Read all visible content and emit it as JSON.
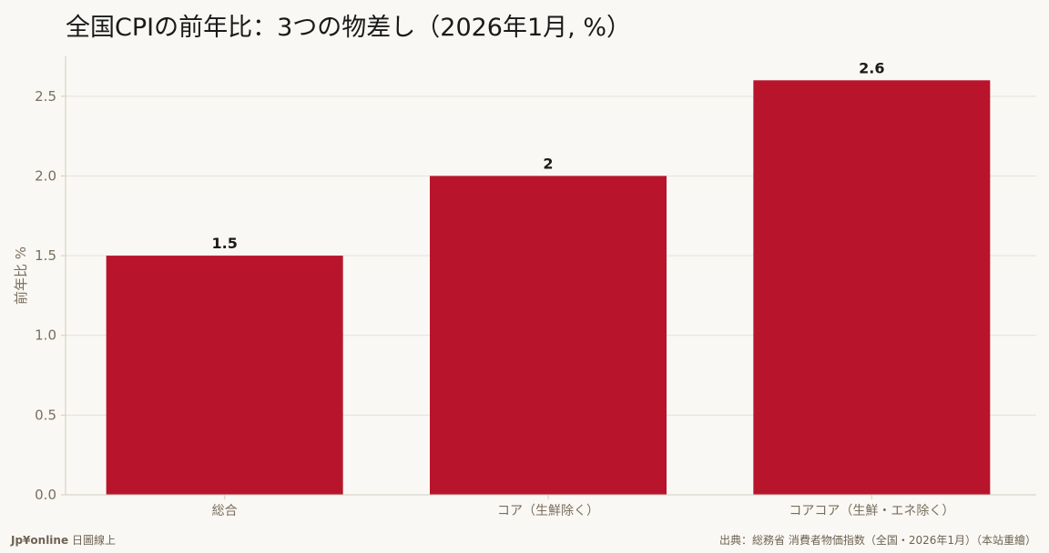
{
  "title": "全国CPIの前年比：3つの物差し（2026年1月, %）",
  "footer": {
    "brand": "Jp¥online",
    "tagline": "日圖線上",
    "source": "出典：総務省 消費者物価指数（全国・2026年1月）（本站重繪）"
  },
  "colors": {
    "bar": "#b8152d",
    "grid": "#e6e1d8",
    "axis": "#d2ccc0",
    "tick_text": "#7a6e5e"
  },
  "chart_data": {
    "type": "bar",
    "categories": [
      "総合",
      "コア（生鮮除く）",
      "コアコア（生鮮・エネ除く）"
    ],
    "values": [
      1.5,
      2.0,
      2.6
    ],
    "value_labels": [
      "1.5",
      "2",
      "2.6"
    ],
    "ylabel": "前年比 %",
    "xlabel": "",
    "ylim": [
      0,
      2.75
    ],
    "yticks": [
      0.0,
      0.5,
      1.0,
      1.5,
      2.0,
      2.5
    ],
    "ytick_labels": [
      "0.0",
      "0.5",
      "1.0",
      "1.5",
      "2.0",
      "2.5"
    ],
    "grid": true
  }
}
